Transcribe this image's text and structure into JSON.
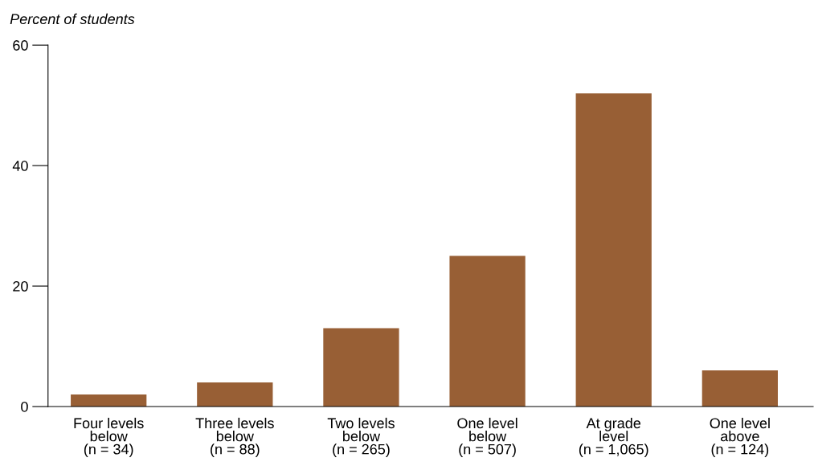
{
  "chart_data": {
    "type": "bar",
    "ylabel": "Percent of students",
    "categories": [
      "Four levels\nbelow\n(n = 34)",
      "Three levels\nbelow\n(n = 88)",
      "Two levels\nbelow\n(n = 265)",
      "One level\nbelow\n(n = 507)",
      "At grade\nlevel\n(n = 1,065)",
      "One level\nabove\n(n = 124)"
    ],
    "values": [
      2,
      4,
      13,
      25,
      52,
      6
    ],
    "color": "#985f35",
    "ylim": [
      0,
      60
    ],
    "yticks": [
      0,
      20,
      40,
      60
    ],
    "grid": false,
    "legend": false
  }
}
